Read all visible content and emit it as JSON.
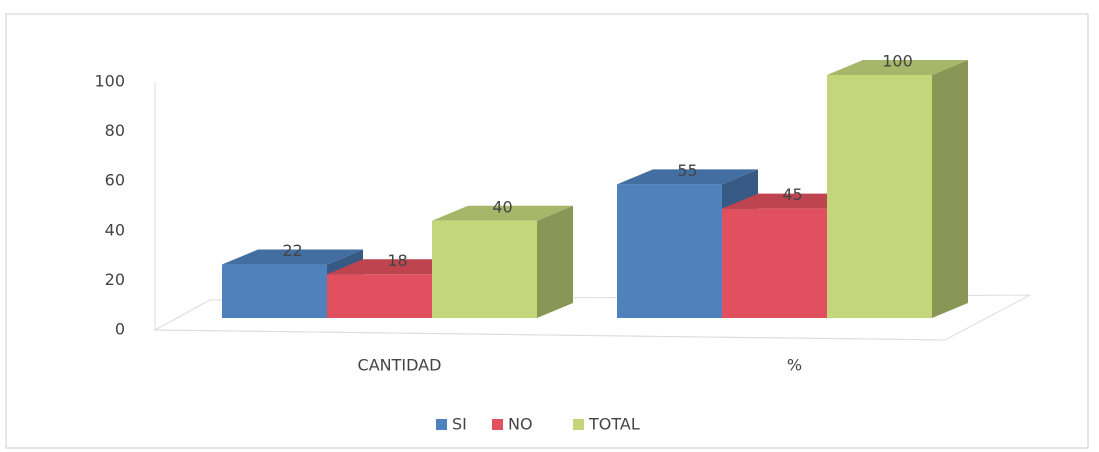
{
  "chart_data": {
    "type": "bar3d",
    "categories": [
      "CANTIDAD",
      "%"
    ],
    "series": [
      {
        "name": "SI",
        "color": "#4f81bd",
        "values": [
          22,
          55
        ]
      },
      {
        "name": "NO",
        "color": "#e0505e",
        "values": [
          18,
          45
        ]
      },
      {
        "name": "TOTAL",
        "color": "#c4d67a",
        "values": [
          40,
          100
        ]
      }
    ],
    "ylim": [
      0,
      100
    ],
    "yticks": [
      0,
      20,
      40,
      60,
      80,
      100
    ],
    "legend": "bottom"
  }
}
